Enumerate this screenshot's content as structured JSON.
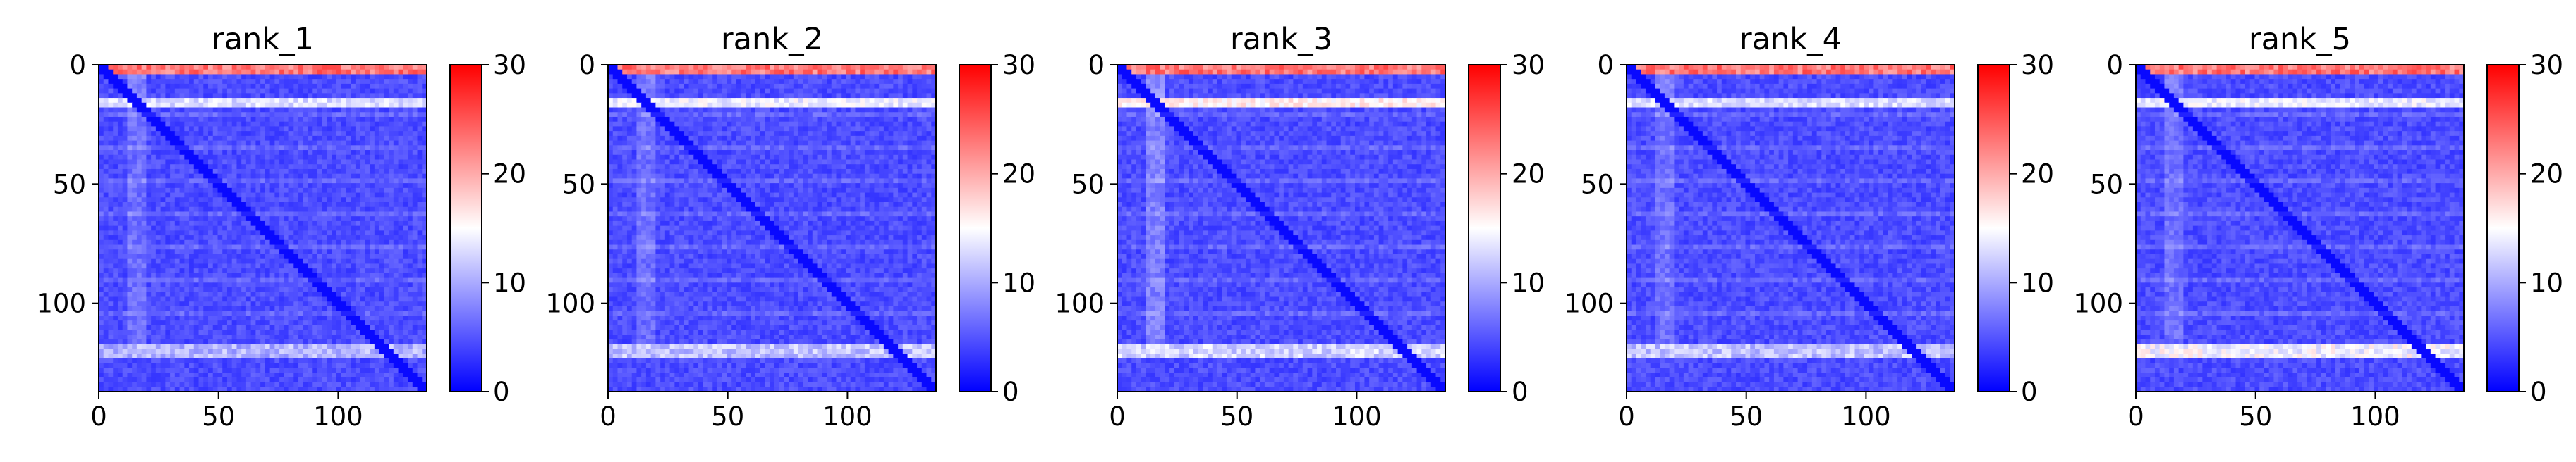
{
  "chart_data": [
    {
      "type": "heatmap",
      "title": "rank_1",
      "xlim": [
        0,
        137
      ],
      "ylim": [
        137,
        0
      ],
      "xticks": [
        0,
        50,
        100
      ],
      "yticks": [
        0,
        50,
        100
      ],
      "colorbar": {
        "min": 0,
        "max": 30,
        "ticks": [
          0,
          10,
          20,
          30
        ]
      },
      "features": {
        "background": 4.5,
        "top_band": [
          0,
          2,
          26
        ],
        "mid_band": [
          14,
          17,
          15
        ],
        "lower_band": [
          118,
          123,
          13
        ],
        "col_stripe": [
          12,
          20,
          9
        ]
      }
    },
    {
      "type": "heatmap",
      "title": "rank_2",
      "xlim": [
        0,
        137
      ],
      "ylim": [
        137,
        0
      ],
      "xticks": [
        0,
        50,
        100
      ],
      "yticks": [
        0,
        50,
        100
      ],
      "colorbar": {
        "min": 0,
        "max": 30,
        "ticks": [
          0,
          10,
          20,
          30
        ]
      },
      "features": {
        "background": 4.5,
        "top_band": [
          0,
          2,
          26
        ],
        "mid_band": [
          14,
          17,
          16
        ],
        "lower_band": [
          118,
          123,
          14
        ],
        "col_stripe": [
          12,
          20,
          9
        ]
      }
    },
    {
      "type": "heatmap",
      "title": "rank_3",
      "xlim": [
        0,
        137
      ],
      "ylim": [
        137,
        0
      ],
      "xticks": [
        0,
        50,
        100
      ],
      "yticks": [
        0,
        50,
        100
      ],
      "colorbar": {
        "min": 0,
        "max": 30,
        "ticks": [
          0,
          10,
          20,
          30
        ]
      },
      "features": {
        "background": 4.5,
        "top_band": [
          0,
          2,
          26
        ],
        "mid_band": [
          14,
          17,
          18
        ],
        "lower_band": [
          118,
          123,
          15
        ],
        "col_stripe": [
          12,
          20,
          10
        ]
      }
    },
    {
      "type": "heatmap",
      "title": "rank_4",
      "xlim": [
        0,
        137
      ],
      "ylim": [
        137,
        0
      ],
      "xticks": [
        0,
        50,
        100
      ],
      "yticks": [
        0,
        50,
        100
      ],
      "colorbar": {
        "min": 0,
        "max": 30,
        "ticks": [
          0,
          10,
          20,
          30
        ]
      },
      "features": {
        "background": 4.5,
        "top_band": [
          0,
          2,
          26
        ],
        "mid_band": [
          14,
          17,
          15
        ],
        "lower_band": [
          118,
          123,
          14
        ],
        "col_stripe": [
          12,
          20,
          9
        ]
      }
    },
    {
      "type": "heatmap",
      "title": "rank_5",
      "xlim": [
        0,
        137
      ],
      "ylim": [
        137,
        0
      ],
      "xticks": [
        0,
        50,
        100
      ],
      "yticks": [
        0,
        50,
        100
      ],
      "colorbar": {
        "min": 0,
        "max": 30,
        "ticks": [
          0,
          10,
          20,
          30
        ]
      },
      "features": {
        "background": 4.5,
        "top_band": [
          0,
          2,
          26
        ],
        "mid_band": [
          14,
          17,
          16
        ],
        "lower_band": [
          118,
          123,
          17
        ],
        "col_stripe": [
          12,
          20,
          9
        ]
      }
    }
  ],
  "colormap": {
    "name": "bwr",
    "low": "#0000ff",
    "mid": "#ffffff",
    "high": "#ff0000"
  }
}
